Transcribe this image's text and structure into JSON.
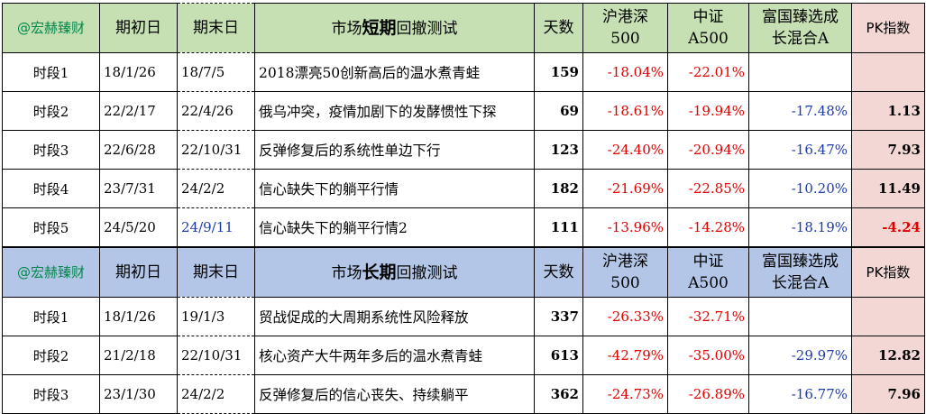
{
  "short_term": {
    "header": {
      "handle": "@宏赫臻财",
      "start_label": "期初日",
      "end_label": "期末日",
      "title_pre": "市场",
      "title_bold": "短期",
      "title_post": "回撤测试",
      "days_label": "天数",
      "hs500_line1": "沪港深",
      "hs500_line2": "500",
      "a500_line1": "中证",
      "a500_line2": "A500",
      "fund_line1": "富国臻选成",
      "fund_line2": "长混合A",
      "pk_label": "PK指数"
    },
    "rows": [
      {
        "segment": "时段1",
        "start": "18/1/26",
        "end": "18/7/5",
        "desc": "2018漂亮50创新高后的温水煮青蛙",
        "days": "159",
        "hs500": "-18.04%",
        "a500": "-22.01%",
        "fund": "",
        "pk": ""
      },
      {
        "segment": "时段2",
        "start": "22/2/17",
        "end": "22/4/26",
        "desc": "俄乌冲突，疫情加剧下的发酵惯性下探",
        "days": "69",
        "hs500": "-18.61%",
        "a500": "-19.94%",
        "fund": "-17.48%",
        "pk": "1.13"
      },
      {
        "segment": "时段3",
        "start": "22/6/28",
        "end": "22/10/31",
        "desc": "反弹修复后的系统性单边下行",
        "days": "123",
        "hs500": "-24.40%",
        "a500": "-20.94%",
        "fund": "-16.47%",
        "pk": "7.93"
      },
      {
        "segment": "时段4",
        "start": "23/7/31",
        "end": "24/2/2",
        "desc": "信心缺失下的躺平行情",
        "days": "182",
        "hs500": "-21.69%",
        "a500": "-22.85%",
        "fund": "-10.20%",
        "pk": "11.49"
      },
      {
        "segment": "时段5",
        "start": "24/5/20",
        "end": "24/9/11",
        "desc": "信心缺失下的躺平行情2",
        "days": "111",
        "hs500": "-13.96%",
        "a500": "-14.28%",
        "fund": "-18.19%",
        "pk": "-4.24"
      }
    ]
  },
  "long_term": {
    "header": {
      "handle": "@宏赫臻财",
      "start_label": "期初日",
      "end_label": "期末日",
      "title_pre": "市场",
      "title_bold": "长期",
      "title_post": "回撤测试",
      "days_label": "天数",
      "hs500_line1": "沪港深",
      "hs500_line2": "500",
      "a500_line1": "中证",
      "a500_line2": "A500",
      "fund_line1": "富国臻选成",
      "fund_line2": "长混合A",
      "pk_label": "PK指数"
    },
    "rows": [
      {
        "segment": "时段1",
        "start": "18/1/26",
        "end": "19/1/3",
        "desc": "贸战促成的大周期系统性风险释放",
        "days": "337",
        "hs500": "-26.33%",
        "a500": "-32.71%",
        "fund": "",
        "pk": ""
      },
      {
        "segment": "时段2",
        "start": "21/2/18",
        "end": "22/10/31",
        "desc": "核心资产大牛两年多后的温水煮青蛙",
        "days": "613",
        "hs500": "-42.79%",
        "a500": "-35.00%",
        "fund": "-29.97%",
        "pk": "12.82"
      },
      {
        "segment": "时段3",
        "start": "23/1/30",
        "end": "24/2/2",
        "desc": "反弹修复后的信心丧失、持续躺平",
        "days": "362",
        "hs500": "-24.73%",
        "a500": "-26.89%",
        "fund": "-16.77%",
        "pk": "7.96"
      }
    ]
  }
}
